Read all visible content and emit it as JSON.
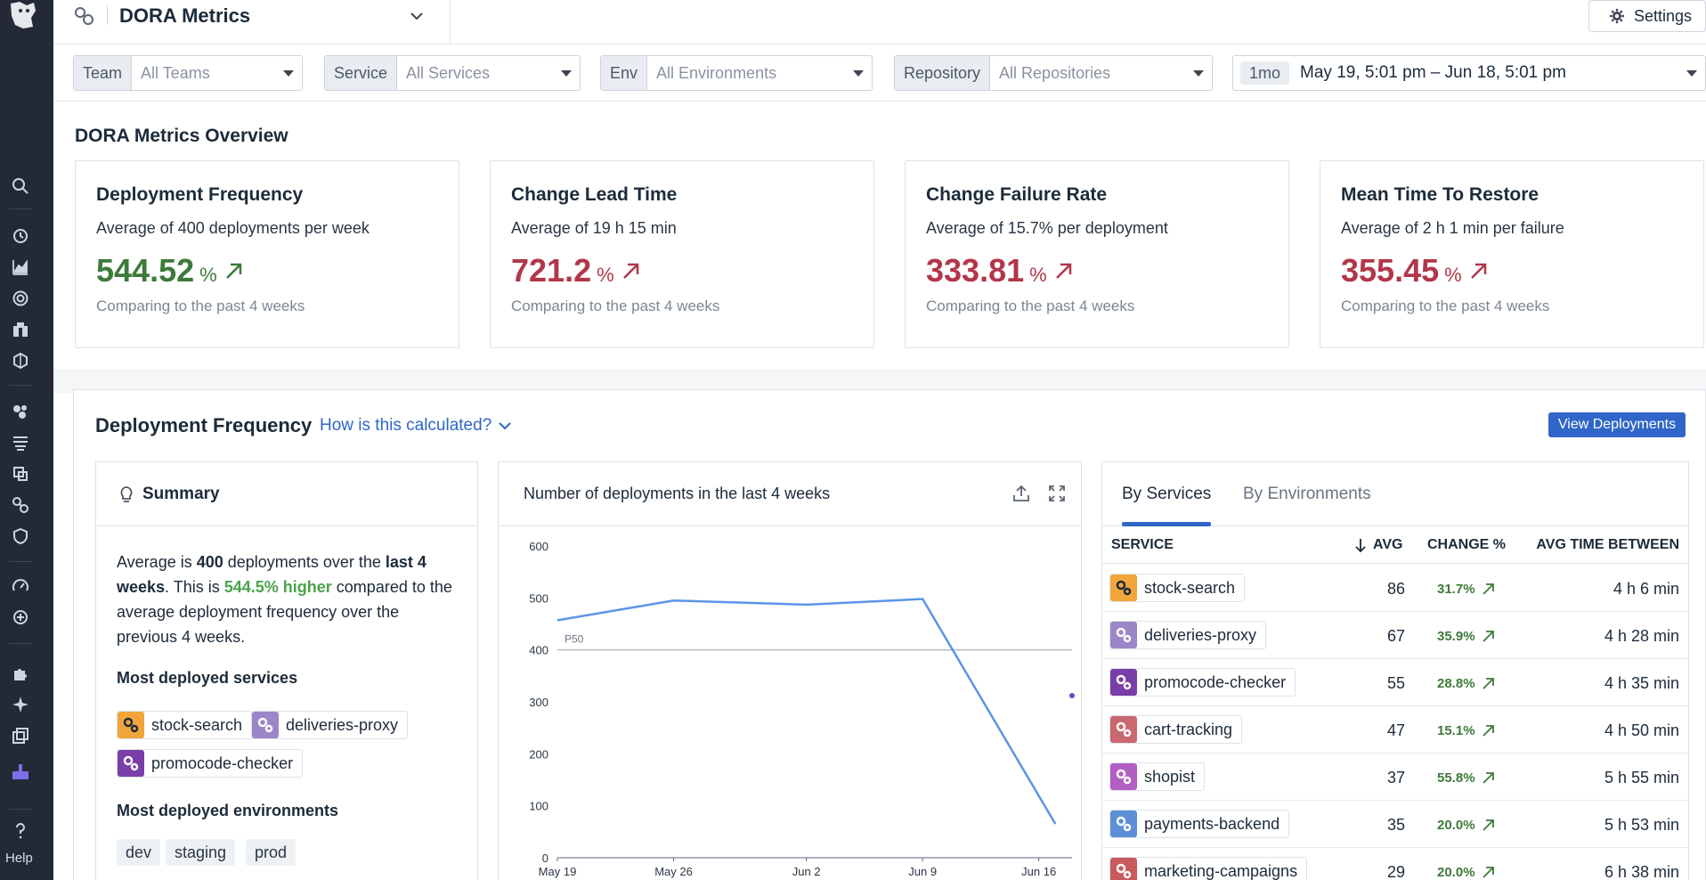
{
  "header": {
    "title": "DORA Metrics",
    "settings_label": "Settings"
  },
  "nav": {
    "help_label": "Help"
  },
  "filters": {
    "team": {
      "label": "Team",
      "value": "All Teams"
    },
    "service": {
      "label": "Service",
      "value": "All Services"
    },
    "env": {
      "label": "Env",
      "value": "All Environments"
    },
    "repository": {
      "label": "Repository",
      "value": "All Repositories"
    },
    "time": {
      "chip": "1mo",
      "value": "May 19, 5:01 pm – Jun 18, 5:01 pm"
    }
  },
  "overview": {
    "title": "DORA Metrics Overview",
    "cards": [
      {
        "title": "Deployment Frequency",
        "subtitle": "Average of 400 deployments per week",
        "value": "544.52",
        "unit": "%",
        "footer": "Comparing to the past 4 weeks",
        "trend": "good"
      },
      {
        "title": "Change Lead Time",
        "subtitle": "Average of 19 h 15 min",
        "value": "721.2",
        "unit": "%",
        "footer": "Comparing to the past 4 weeks",
        "trend": "bad"
      },
      {
        "title": "Change Failure Rate",
        "subtitle": "Average of 15.7% per deployment",
        "value": "333.81",
        "unit": "%",
        "footer": "Comparing to the past 4 weeks",
        "trend": "bad"
      },
      {
        "title": "Mean Time To Restore",
        "subtitle": "Average of 2 h 1 min per failure",
        "value": "355.45",
        "unit": "%",
        "footer": "Comparing to the past 4 weeks",
        "trend": "bad"
      }
    ]
  },
  "deployment_frequency": {
    "title": "Deployment Frequency",
    "how_link": "How is this calculated?",
    "view_button": "View Deployments",
    "summary": {
      "title": "Summary",
      "text_1": "Average is ",
      "text_2": "400",
      "text_3": " deployments over the ",
      "text_4": "last 4 weeks",
      "text_5": ". This is ",
      "text_6": "544.5% higher",
      "text_7": " compared to the average deployment frequency over the previous 4 weeks.",
      "services_heading": "Most deployed services",
      "services": [
        "stock-search",
        "deliveries-proxy",
        "promocode-checker"
      ],
      "environments_heading": "Most deployed environments",
      "environments": [
        "dev",
        "staging",
        "prod"
      ]
    },
    "chart_title": "Number of deployments in the last 4 weeks",
    "tabs": [
      "By Services",
      "By Environments"
    ],
    "table": {
      "columns": [
        "SERVICE",
        "AVG",
        "CHANGE %",
        "AVG TIME BETWEEN"
      ],
      "rows": [
        {
          "service": "stock-search",
          "avg": "86",
          "change": "31.7%",
          "time": "4 h 6 min",
          "color": "#f2a53a"
        },
        {
          "service": "deliveries-proxy",
          "avg": "67",
          "change": "35.9%",
          "time": "4 h 28 min",
          "color": "#9b86c8"
        },
        {
          "service": "promocode-checker",
          "avg": "55",
          "change": "28.8%",
          "time": "4 h 35 min",
          "color": "#7a3ea8"
        },
        {
          "service": "cart-tracking",
          "avg": "47",
          "change": "15.1%",
          "time": "4 h 50 min",
          "color": "#c9686f"
        },
        {
          "service": "shopist",
          "avg": "37",
          "change": "55.8%",
          "time": "5 h 55 min",
          "color": "#b25fc4"
        },
        {
          "service": "payments-backend",
          "avg": "35",
          "change": "20.0%",
          "time": "5 h 53 min",
          "color": "#5c8fd6"
        },
        {
          "service": "marketing-campaigns",
          "avg": "29",
          "change": "20.0%",
          "time": "6 h 38 min",
          "color": "#c85c5c"
        }
      ]
    }
  },
  "chart_data": {
    "type": "line",
    "title": "Number of deployments in the last 4 weeks",
    "x_tick_labels": [
      "May 19",
      "May 26",
      "Jun 2",
      "Jun 9",
      "Jun 16"
    ],
    "ylim": [
      0,
      600
    ],
    "y_ticks": [
      0,
      100,
      200,
      300,
      400,
      500,
      600
    ],
    "series": [
      {
        "x": [
          "May 19",
          "May 26",
          "Jun 2",
          "Jun 9",
          "Jun 17"
        ],
        "values": [
          457,
          495,
          487,
          498,
          65
        ]
      }
    ],
    "point": {
      "x": "Jun 18",
      "y": 312
    },
    "reference_line": {
      "label": "P50",
      "y": 400
    },
    "grid": false
  }
}
